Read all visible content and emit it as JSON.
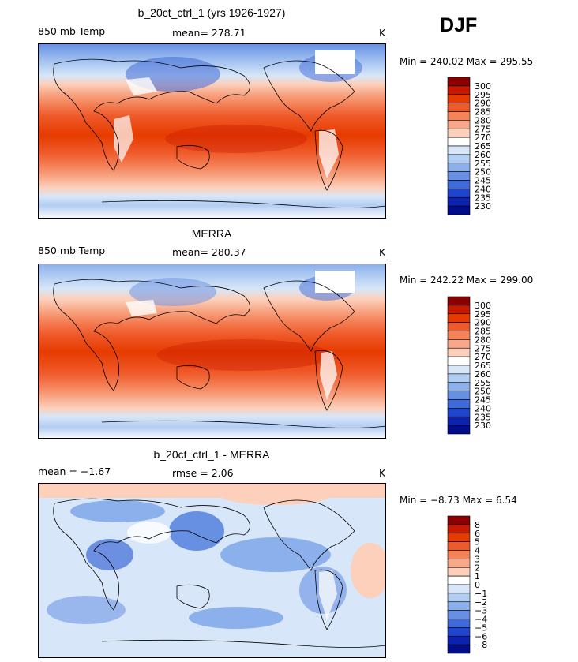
{
  "season": "DJF",
  "panels": [
    {
      "title": "b_20ct_ctrl_1 (yrs 1926-1927)",
      "left_label": "850 mb Temp",
      "center_label": "mean=  278.71",
      "right_label": "K",
      "minmax": "Min = 240.02  Max = 295.55",
      "kind": "temp"
    },
    {
      "title": "MERRA",
      "left_label": "850 mb Temp",
      "center_label": "mean=  280.37",
      "right_label": "K",
      "minmax": "Min = 242.22  Max = 299.00",
      "kind": "temp"
    },
    {
      "title": "b_20ct_ctrl_1 - MERRA",
      "left_label": "mean =   −1.67",
      "center_label": "rmse =    2.06",
      "right_label": "K",
      "minmax": "Min =  −8.73  Max =    6.54",
      "kind": "diff"
    }
  ],
  "chart_data": [
    {
      "type": "heatmap",
      "title": "b_20ct_ctrl_1 (yrs 1926-1927)",
      "variable": "850 mb Temp",
      "units": "K",
      "mean": 278.71,
      "min": 240.02,
      "max": 295.55,
      "colorbar_levels": [
        "300",
        "295",
        "290",
        "285",
        "280",
        "275",
        "270",
        "265",
        "260",
        "255",
        "250",
        "245",
        "240",
        "235",
        "230"
      ],
      "colorbar_colors": [
        "#8b0000",
        "#c81800",
        "#e63b00",
        "#ef5a2a",
        "#f5835a",
        "#f8a888",
        "#fcd0bb",
        "#ffffff",
        "#d7e6f8",
        "#b2cdf2",
        "#8cb0ec",
        "#6790e3",
        "#3f6ad9",
        "#1f45cc",
        "#0b22b0",
        "#000c8a"
      ]
    },
    {
      "type": "heatmap",
      "title": "MERRA",
      "variable": "850 mb Temp",
      "units": "K",
      "mean": 280.37,
      "min": 242.22,
      "max": 299.0,
      "colorbar_levels": [
        "300",
        "295",
        "290",
        "285",
        "280",
        "275",
        "270",
        "265",
        "260",
        "255",
        "250",
        "245",
        "240",
        "235",
        "230"
      ],
      "colorbar_colors": [
        "#8b0000",
        "#c81800",
        "#e63b00",
        "#ef5a2a",
        "#f5835a",
        "#f8a888",
        "#fcd0bb",
        "#ffffff",
        "#d7e6f8",
        "#b2cdf2",
        "#8cb0ec",
        "#6790e3",
        "#3f6ad9",
        "#1f45cc",
        "#0b22b0",
        "#000c8a"
      ]
    },
    {
      "type": "heatmap",
      "title": "b_20ct_ctrl_1 - MERRA",
      "units": "K",
      "mean": -1.67,
      "rmse": 2.06,
      "min": -8.73,
      "max": 6.54,
      "colorbar_levels": [
        "8",
        "6",
        "5",
        "4",
        "3",
        "2",
        "1",
        "0",
        "−1",
        "−2",
        "−3",
        "−4",
        "−5",
        "−6",
        "−8"
      ],
      "colorbar_colors": [
        "#8b0000",
        "#c81800",
        "#e63b00",
        "#ef5a2a",
        "#f5835a",
        "#f8a888",
        "#fcd0bb",
        "#ffffff",
        "#d7e6f8",
        "#b2cdf2",
        "#8cb0ec",
        "#6790e3",
        "#3f6ad9",
        "#1f45cc",
        "#0b22b0",
        "#000c8a"
      ]
    }
  ]
}
